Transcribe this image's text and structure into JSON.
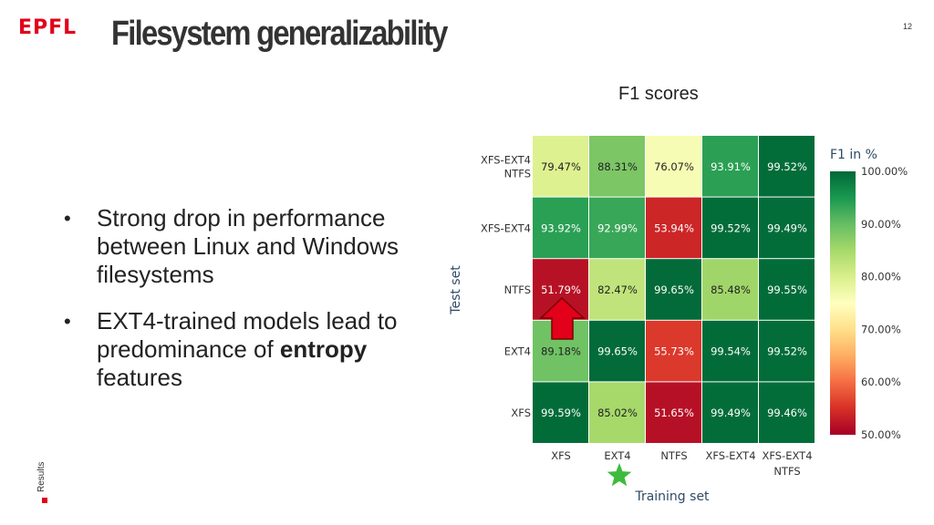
{
  "header": {
    "logo_text": "EPFL",
    "title": "Filesystem generalizability",
    "page_number": "12",
    "section_label": "Results"
  },
  "subtitle": "F1 scores",
  "bullets": [
    {
      "marker": "•",
      "text": "Strong drop in performance between Linux and Windows filesystems"
    },
    {
      "marker": "•",
      "text_before": "EXT4-trained models lead to predominance of ",
      "bold": "entropy",
      "text_after": " features"
    }
  ],
  "colors": {
    "brand": "#e2001a",
    "arrow": "#e2001a",
    "star": "#3dbb3d"
  },
  "chart_data": {
    "type": "heatmap",
    "xlabel": "Training set",
    "ylabel": "Test set",
    "x_categories": [
      "XFS",
      "EXT4",
      "NTFS",
      "XFS-EXT4",
      "XFS-EXT4\nNTFS"
    ],
    "y_categories": [
      "XFS-EXT4\nNTFS",
      "XFS-EXT4",
      "NTFS",
      "EXT4",
      "XFS"
    ],
    "values": [
      [
        79.47,
        88.31,
        76.07,
        93.91,
        99.52
      ],
      [
        93.92,
        92.99,
        53.94,
        99.52,
        99.49
      ],
      [
        51.79,
        82.47,
        99.65,
        85.48,
        99.55
      ],
      [
        89.18,
        99.65,
        55.73,
        99.54,
        99.52
      ],
      [
        99.59,
        85.02,
        51.65,
        99.49,
        99.46
      ]
    ],
    "labels": [
      [
        "79.47%",
        "88.31%",
        "76.07%",
        "93.91%",
        "99.52%"
      ],
      [
        "93.92%",
        "92.99%",
        "53.94%",
        "99.52%",
        "99.49%"
      ],
      [
        "51.79%",
        "82.47%",
        "99.65%",
        "85.48%",
        "99.55%"
      ],
      [
        "89.18%",
        "99.65%",
        "55.73%",
        "99.54%",
        "99.52%"
      ],
      [
        "99.59%",
        "85.02%",
        "51.65%",
        "99.49%",
        "99.46%"
      ]
    ],
    "colorbar": {
      "title": "F1 in %",
      "range": [
        50,
        100
      ],
      "ticks": [
        "100.00%",
        "90.00%",
        "80.00%",
        "70.00%",
        "60.00%",
        "50.00%"
      ],
      "tick_values": [
        100,
        90,
        80,
        70,
        60,
        50
      ],
      "colormap": "RdYlGn"
    },
    "annotations": [
      {
        "type": "arrow",
        "points_to": "cell NTFS/XFS"
      },
      {
        "type": "star",
        "marks": "column EXT4"
      }
    ]
  }
}
